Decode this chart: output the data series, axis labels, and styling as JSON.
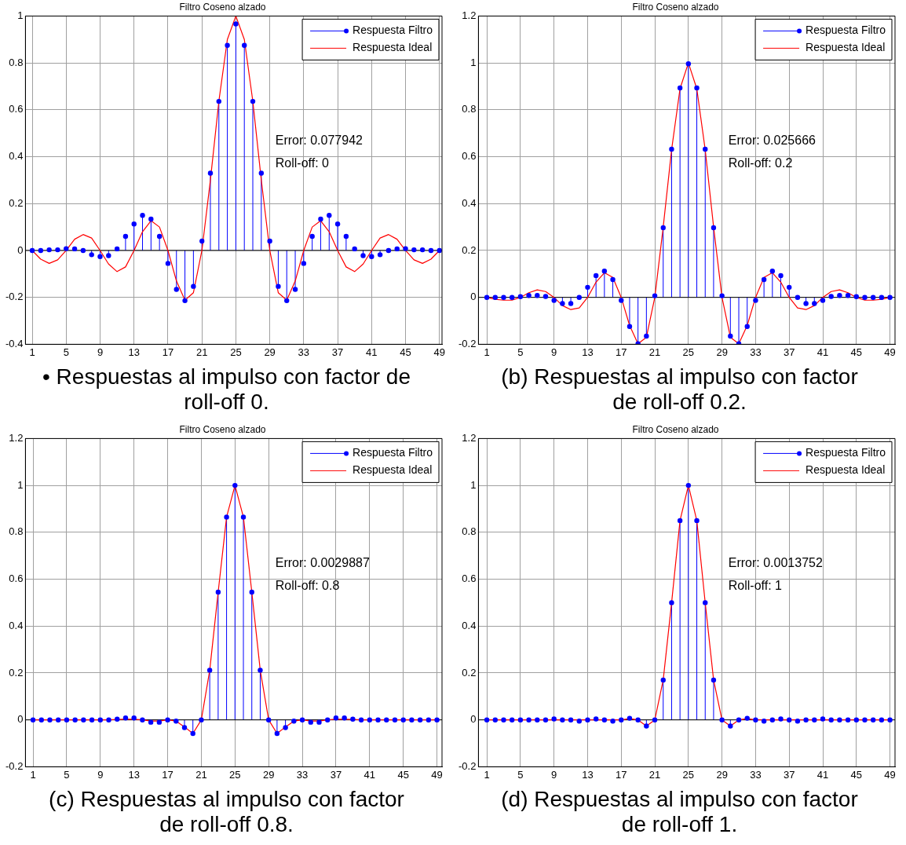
{
  "chart_data": [
    {
      "type": "lollipop",
      "title": "Filtro Coseno alzado",
      "annotations": [
        "Error: 0.077942",
        "Roll-off: 0",
        "• Respuestas al impulso con factor de roll-off 0."
      ],
      "x": [
        1,
        2,
        3,
        4,
        5,
        6,
        7,
        8,
        9,
        10,
        11,
        12,
        13,
        14,
        15,
        16,
        17,
        18,
        19,
        20,
        21,
        22,
        23,
        24,
        25,
        26,
        27,
        28,
        29,
        30,
        31,
        32,
        33,
        34,
        35,
        36,
        37,
        38,
        39,
        40,
        41,
        42,
        43,
        44,
        45,
        46,
        47,
        48,
        49
      ],
      "xlim": [
        0.2,
        49.3
      ],
      "xticks": [
        1,
        5,
        9,
        13,
        17,
        21,
        25,
        29,
        33,
        37,
        41,
        45,
        49
      ],
      "ylim": [
        -0.4,
        1
      ],
      "yticks": [
        -0.4,
        -0.2,
        0,
        0.2,
        0.4,
        0.6,
        0.8,
        1
      ],
      "grid": true,
      "legend": "top right",
      "series": [
        {
          "name": "Respuesta Filtro",
          "color": "#0000ff",
          "marker": "circle",
          "values": [
            0,
            0,
            0.003,
            0.003,
            0.008,
            0.007,
            0,
            -0.018,
            -0.026,
            -0.022,
            0.007,
            0.06,
            0.113,
            0.15,
            0.134,
            0.06,
            -0.055,
            -0.166,
            -0.214,
            -0.153,
            0.04,
            0.33,
            0.636,
            0.875,
            0.966,
            0.875,
            0.636,
            0.33,
            0.04,
            -0.153,
            -0.214,
            -0.166,
            -0.055,
            0.06,
            0.134,
            0.15,
            0.113,
            0.06,
            0.007,
            -0.022,
            -0.026,
            -0.018,
            0,
            0.007,
            0.008,
            0.003,
            0.003,
            0,
            0
          ]
        },
        {
          "name": "Respuesta Ideal",
          "type": "line",
          "color": "#ff0000",
          "marker": "none",
          "values": [
            0,
            -0.037,
            -0.055,
            -0.04,
            0,
            0.048,
            0.068,
            0.053,
            0,
            -0.058,
            -0.09,
            -0.07,
            0,
            0.08,
            0.127,
            0.1,
            0,
            -0.13,
            -0.212,
            -0.18,
            0,
            0.3,
            0.637,
            0.9,
            1,
            0.9,
            0.637,
            0.3,
            0,
            -0.18,
            -0.212,
            -0.13,
            0,
            0.1,
            0.127,
            0.08,
            0,
            -0.07,
            -0.09,
            -0.058,
            0,
            0.053,
            0.068,
            0.048,
            0,
            -0.04,
            -0.055,
            -0.037,
            0
          ]
        }
      ]
    },
    {
      "type": "lollipop",
      "title": "Filtro Coseno alzado",
      "annotations": [
        "Error: 0.025666",
        "Roll-off: 0.2",
        "(b) Respuestas al impulso con factor de roll-off 0.2."
      ],
      "x": [
        1,
        2,
        3,
        4,
        5,
        6,
        7,
        8,
        9,
        10,
        11,
        12,
        13,
        14,
        15,
        16,
        17,
        18,
        19,
        20,
        21,
        22,
        23,
        24,
        25,
        26,
        27,
        28,
        29,
        30,
        31,
        32,
        33,
        34,
        35,
        36,
        37,
        38,
        39,
        40,
        41,
        42,
        43,
        44,
        45,
        46,
        47,
        48,
        49
      ],
      "xlim": [
        0,
        49.6
      ],
      "xticks": [
        1,
        5,
        9,
        13,
        17,
        21,
        25,
        29,
        33,
        37,
        41,
        45,
        49
      ],
      "ylim": [
        -0.2,
        1.2
      ],
      "yticks": [
        -0.2,
        0,
        0.2,
        0.4,
        0.6,
        0.8,
        1,
        1.2
      ],
      "grid": true,
      "legend": "top right",
      "series": [
        {
          "name": "Respuesta Filtro",
          "color": "#0000ff",
          "marker": "circle",
          "values": [
            0,
            0,
            0,
            0,
            0.003,
            0.008,
            0.008,
            0.004,
            -0.013,
            -0.026,
            -0.026,
            0,
            0.043,
            0.093,
            0.112,
            0.076,
            -0.013,
            -0.124,
            -0.198,
            -0.165,
            0.007,
            0.297,
            0.632,
            0.893,
            0.996,
            0.893,
            0.632,
            0.297,
            0.007,
            -0.165,
            -0.198,
            -0.124,
            -0.013,
            0.076,
            0.112,
            0.093,
            0.043,
            0,
            -0.026,
            -0.026,
            -0.013,
            0.004,
            0.008,
            0.008,
            0.003,
            0,
            0,
            0,
            0
          ]
        },
        {
          "name": "Respuesta Ideal",
          "type": "line",
          "color": "#ff0000",
          "marker": "none",
          "values": [
            0,
            -0.008,
            -0.012,
            -0.012,
            0,
            0.02,
            0.032,
            0.025,
            0,
            -0.035,
            -0.052,
            -0.045,
            0,
            0.065,
            0.105,
            0.085,
            0,
            -0.12,
            -0.198,
            -0.17,
            0,
            0.3,
            0.63,
            0.89,
            1,
            0.89,
            0.63,
            0.3,
            0,
            -0.17,
            -0.198,
            -0.12,
            0,
            0.085,
            0.105,
            0.065,
            0,
            -0.045,
            -0.052,
            -0.035,
            0,
            0.025,
            0.032,
            0.02,
            0,
            -0.012,
            -0.012,
            -0.008,
            0
          ]
        }
      ]
    },
    {
      "type": "lollipop",
      "title": "Filtro Coseno alzado",
      "annotations": [
        "Error: 0.0029887",
        "Roll-off: 0.8",
        "(c) Respuestas al impulso con factor de roll-off 0.8."
      ],
      "x": [
        1,
        2,
        3,
        4,
        5,
        6,
        7,
        8,
        9,
        10,
        11,
        12,
        13,
        14,
        15,
        16,
        17,
        18,
        19,
        20,
        21,
        22,
        23,
        24,
        25,
        26,
        27,
        28,
        29,
        30,
        31,
        32,
        33,
        34,
        35,
        36,
        37,
        38,
        39,
        40,
        41,
        42,
        43,
        44,
        45,
        46,
        47,
        48,
        49
      ],
      "xlim": [
        0.1,
        49.6
      ],
      "xticks": [
        1,
        5,
        9,
        13,
        17,
        21,
        25,
        29,
        33,
        37,
        41,
        45,
        49
      ],
      "ylim": [
        -0.2,
        1.2
      ],
      "yticks": [
        -0.2,
        0,
        0.2,
        0.4,
        0.6,
        0.8,
        1,
        1.2
      ],
      "grid": true,
      "legend": "top right",
      "series": [
        {
          "name": "Respuesta Filtro",
          "color": "#0000ff",
          "marker": "circle",
          "values": [
            0,
            0,
            0,
            0,
            0,
            0,
            0,
            0,
            0,
            0,
            0.003,
            0.008,
            0.008,
            0,
            -0.01,
            -0.01,
            0,
            -0.005,
            -0.033,
            -0.058,
            0,
            0.212,
            0.545,
            0.865,
            1,
            0.865,
            0.545,
            0.212,
            0,
            -0.058,
            -0.033,
            -0.005,
            0,
            -0.01,
            -0.01,
            0,
            0.008,
            0.008,
            0.003,
            0,
            0,
            0,
            0,
            0,
            0,
            0,
            0,
            0,
            0
          ]
        },
        {
          "name": "Respuesta Ideal",
          "type": "line",
          "color": "#ff0000",
          "marker": "none",
          "values": [
            0,
            0,
            0,
            0,
            0,
            0,
            0,
            0,
            0,
            0,
            0.002,
            0.003,
            0.003,
            0,
            -0.005,
            -0.005,
            0,
            -0.005,
            -0.03,
            -0.058,
            0,
            0.212,
            0.545,
            0.865,
            1,
            0.865,
            0.545,
            0.212,
            0,
            -0.058,
            -0.03,
            -0.005,
            0,
            -0.005,
            -0.005,
            0,
            0.003,
            0.003,
            0.002,
            0,
            0,
            0,
            0,
            0,
            0,
            0,
            0,
            0,
            0
          ]
        }
      ]
    },
    {
      "type": "lollipop",
      "title": "Filtro Coseno alzado",
      "annotations": [
        "Error: 0.0013752",
        "Roll-off: 1",
        "(d) Respuestas al impulso con factor de roll-off 1."
      ],
      "x": [
        1,
        2,
        3,
        4,
        5,
        6,
        7,
        8,
        9,
        10,
        11,
        12,
        13,
        14,
        15,
        16,
        17,
        18,
        19,
        20,
        21,
        22,
        23,
        24,
        25,
        26,
        27,
        28,
        29,
        30,
        31,
        32,
        33,
        34,
        35,
        36,
        37,
        38,
        39,
        40,
        41,
        42,
        43,
        44,
        45,
        46,
        47,
        48,
        49
      ],
      "xlim": [
        0,
        49.6
      ],
      "xticks": [
        1,
        5,
        9,
        13,
        17,
        21,
        25,
        29,
        33,
        37,
        41,
        45,
        49
      ],
      "ylim": [
        -0.2,
        1.2
      ],
      "yticks": [
        -0.2,
        0,
        0.2,
        0.4,
        0.6,
        0.8,
        1,
        1.2
      ],
      "grid": true,
      "legend": "top right",
      "series": [
        {
          "name": "Respuesta Filtro",
          "color": "#0000ff",
          "marker": "circle",
          "values": [
            0,
            0,
            0,
            0,
            0,
            0,
            0,
            0,
            0.004,
            0,
            0,
            -0.005,
            0,
            0.004,
            0,
            -0.005,
            0,
            0.007,
            0,
            -0.026,
            0,
            0.17,
            0.5,
            0.85,
            1,
            0.85,
            0.5,
            0.17,
            0,
            -0.026,
            0,
            0.007,
            0,
            -0.005,
            0,
            0.004,
            0,
            -0.005,
            0,
            0,
            0.004,
            0,
            0,
            0,
            0,
            0,
            0,
            0,
            0
          ]
        },
        {
          "name": "Respuesta Ideal",
          "type": "line",
          "color": "#ff0000",
          "marker": "none",
          "values": [
            0,
            0,
            0,
            0,
            0,
            0,
            0,
            0,
            0,
            0,
            0,
            0,
            0,
            0,
            0,
            0,
            0,
            0.005,
            0,
            -0.026,
            0,
            0.17,
            0.5,
            0.85,
            1,
            0.85,
            0.5,
            0.17,
            0,
            -0.026,
            0,
            0.005,
            0,
            0,
            0,
            0,
            0,
            0,
            0,
            0,
            0,
            0,
            0,
            0,
            0,
            0,
            0,
            0,
            0
          ]
        }
      ]
    }
  ]
}
